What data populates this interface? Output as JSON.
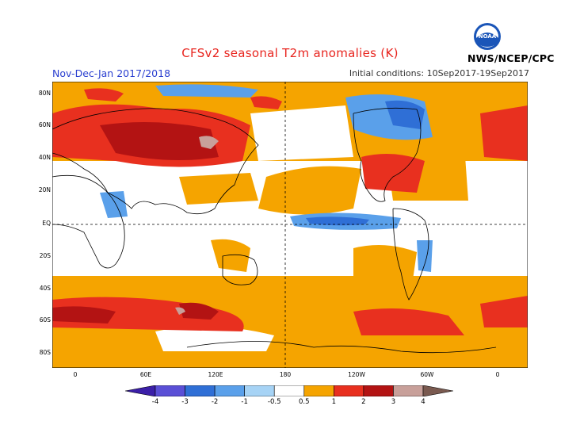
{
  "header": {
    "title": "CFSv2 seasonal T2m anomalies (K)",
    "period": "Nov-Dec-Jan 2017/2018",
    "initial_conditions": "Initial conditions: 10Sep2017-19Sep2017",
    "agency": "NWS/NCEP/CPC",
    "logo_text": "NOAA"
  },
  "map": {
    "lat_labels": [
      "80N",
      "60N",
      "40N",
      "20N",
      "EQ",
      "20S",
      "40S",
      "60S",
      "80S"
    ],
    "lon_labels": [
      "0",
      "60E",
      "120E",
      "180",
      "120W",
      "60W",
      "0"
    ],
    "reference_lines": [
      "equator",
      "dateline"
    ]
  },
  "colorbar": {
    "labels": [
      "-4",
      "-3",
      "-2",
      "-1",
      "-0.5",
      "0.5",
      "1",
      "2",
      "3",
      "4"
    ],
    "colors": [
      "#3b1fa8",
      "#5a4fd6",
      "#2f6fd6",
      "#5aa0ea",
      "#a6d3f5",
      "#ffffff",
      "#f5a400",
      "#e8301f",
      "#b31313",
      "#c8a09a",
      "#7a5a50"
    ]
  },
  "colors": {
    "title": "#e8251f",
    "period": "#2a3fd0",
    "land": "#000000"
  }
}
